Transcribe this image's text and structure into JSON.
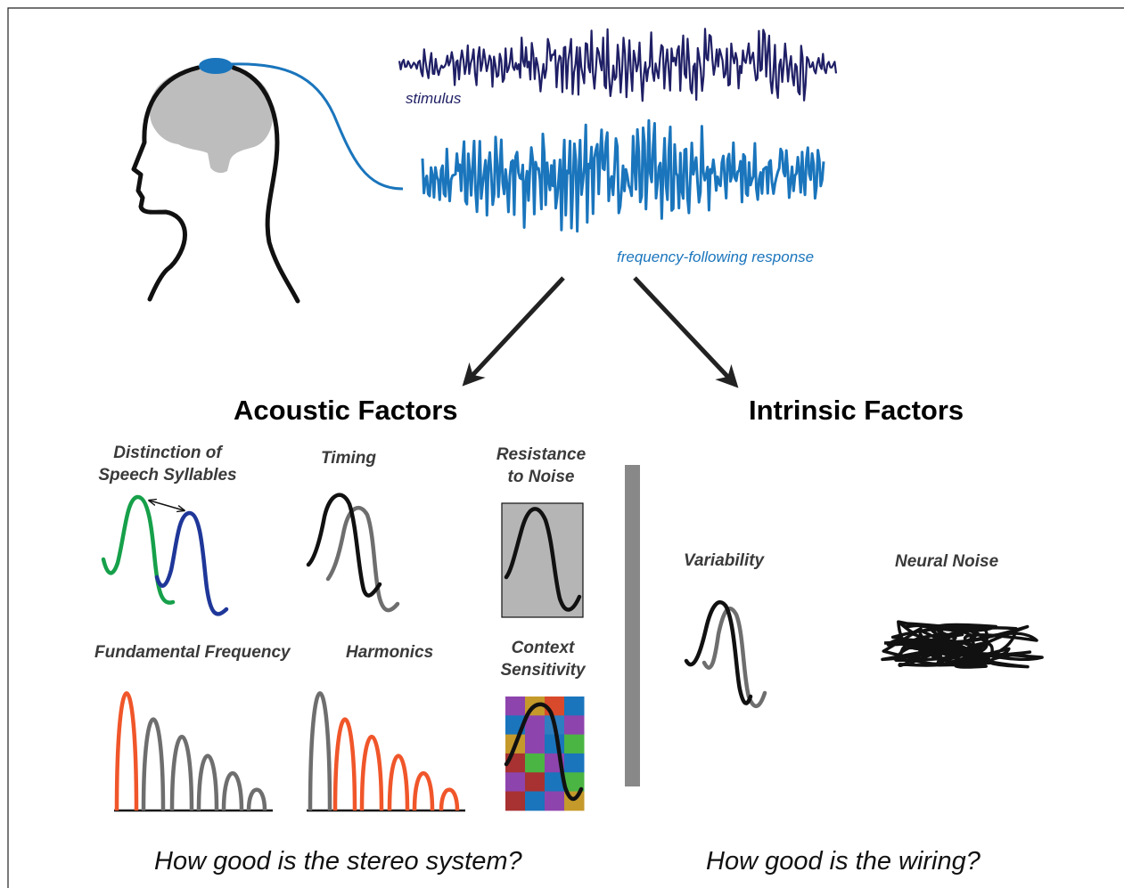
{
  "labels": {
    "stimulus": "stimulus",
    "ffr": "frequency-following response",
    "acoustic": "Acoustic Factors",
    "intrinsic": "Intrinsic Factors",
    "distinction_1": "Distinction of",
    "distinction_2": "Speech Syllables",
    "timing": "Timing",
    "resistance_1": "Resistance",
    "resistance_2": "to Noise",
    "fundamental": "Fundamental Frequency",
    "harmonics": "Harmonics",
    "context_1": "Context",
    "context_2": "Sensitivity",
    "variability": "Variability",
    "neural_noise": "Neural Noise",
    "question_left": "How good is the stereo system?",
    "question_right": "How good is the wiring?"
  },
  "colors": {
    "stimulus": "#1f1f66",
    "ffr": "#1a75bc",
    "electrode": "#1a75bc",
    "brain": "#bdbdbd",
    "green": "#16a04a",
    "navy": "#1f3799",
    "orange": "#f0562a",
    "gray": "#6e6e6e",
    "divider": "#888888",
    "noise_box": "#b5b5b5"
  },
  "context_grid": [
    [
      "#8e44ad",
      "#c59a2b",
      "#d84a2b",
      "#1a75bc"
    ],
    [
      "#1a75bc",
      "#8e44ad",
      "#2f7ec0",
      "#8e44ad"
    ],
    [
      "#c59a2b",
      "#8e44ad",
      "#1a75bc",
      "#4bb543"
    ],
    [
      "#a83232",
      "#4bb543",
      "#8e44ad",
      "#1a75bc"
    ],
    [
      "#8e44ad",
      "#a83232",
      "#1a75bc",
      "#4bb543"
    ],
    [
      "#a83232",
      "#1a75bc",
      "#8e44ad",
      "#c59a2b"
    ]
  ]
}
